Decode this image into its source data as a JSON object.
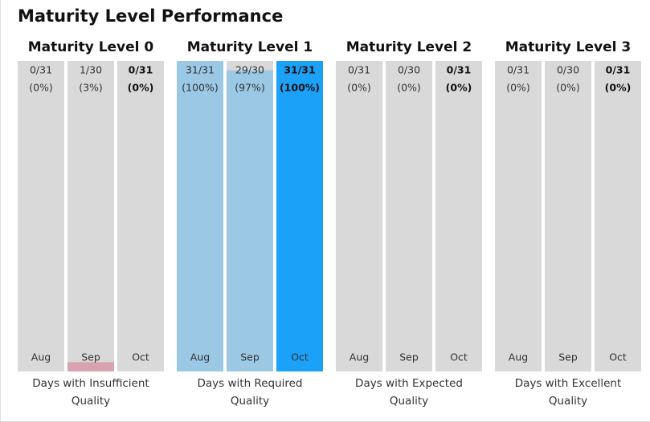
{
  "title": "Maturity Level Performance",
  "ylim": [
    0,
    100
  ],
  "track_color": "#d9d9d9",
  "groups": [
    {
      "name": "Maturity Level 0",
      "caption": [
        "Days with Insufficient",
        "Quality"
      ],
      "months": [
        "Aug",
        "Sep",
        "Oct"
      ],
      "counts": [
        "0/31",
        "1/30",
        "0/31"
      ],
      "values": [
        0,
        3,
        0
      ],
      "value_labels": [
        "(0%)",
        "(3%)",
        "(0%)"
      ],
      "colors": [
        "#d9a2b1",
        "#d9a2b1",
        "#d9a2b1"
      ]
    },
    {
      "name": "Maturity Level 1",
      "caption": [
        "Days with Required",
        "Quality"
      ],
      "months": [
        "Aug",
        "Sep",
        "Oct"
      ],
      "counts": [
        "31/31",
        "29/30",
        "31/31"
      ],
      "values": [
        100,
        97,
        100
      ],
      "value_labels": [
        "(100%)",
        "(97%)",
        "(100%)"
      ],
      "colors": [
        "#9bc8e4",
        "#9bc8e4",
        "#1ba1f7"
      ]
    },
    {
      "name": "Maturity Level 2",
      "caption": [
        "Days with Expected",
        "Quality"
      ],
      "months": [
        "Aug",
        "Sep",
        "Oct"
      ],
      "counts": [
        "0/31",
        "0/30",
        "0/31"
      ],
      "values": [
        0,
        0,
        0
      ],
      "value_labels": [
        "(0%)",
        "(0%)",
        "(0%)"
      ],
      "colors": [
        "#9bc8e4",
        "#9bc8e4",
        "#1ba1f7"
      ]
    },
    {
      "name": "Maturity Level 3",
      "caption": [
        "Days with Excellent",
        "Quality"
      ],
      "months": [
        "Aug",
        "Sep",
        "Oct"
      ],
      "counts": [
        "0/31",
        "0/30",
        "0/31"
      ],
      "values": [
        0,
        0,
        0
      ],
      "value_labels": [
        "(0%)",
        "(0%)",
        "(0%)"
      ],
      "colors": [
        "#9bc8e4",
        "#9bc8e4",
        "#1ba1f7"
      ]
    }
  ]
}
